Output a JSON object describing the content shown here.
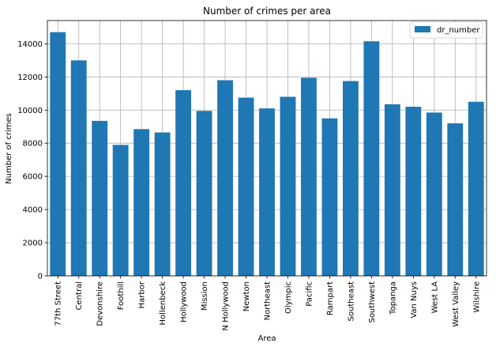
{
  "chart_data": {
    "type": "bar",
    "title": "Number of crimes per area",
    "xlabel": "Area",
    "ylabel": "Number of crimes",
    "ylim": [
      0,
      15400
    ],
    "yticks": [
      0,
      2000,
      4000,
      6000,
      8000,
      10000,
      12000,
      14000
    ],
    "grid": true,
    "legend_position": "top-right",
    "categories": [
      "77th Street",
      "Central",
      "Devonshire",
      "Foothill",
      "Harbor",
      "Hollenbeck",
      "Hollywood",
      "Mission",
      "N Hollywood",
      "Newton",
      "Northeast",
      "Olympic",
      "Pacific",
      "Rampart",
      "Southeast",
      "Southwest",
      "Topanga",
      "Van Nuys",
      "West LA",
      "West Valley",
      "Wilshire"
    ],
    "series": [
      {
        "name": "dr_number",
        "color": "#1f77b4",
        "values": [
          14700,
          13000,
          9350,
          7900,
          8850,
          8650,
          11200,
          9950,
          11800,
          10750,
          10100,
          10800,
          11950,
          9500,
          11750,
          14150,
          10350,
          10200,
          9850,
          9200,
          10500
        ]
      }
    ]
  }
}
